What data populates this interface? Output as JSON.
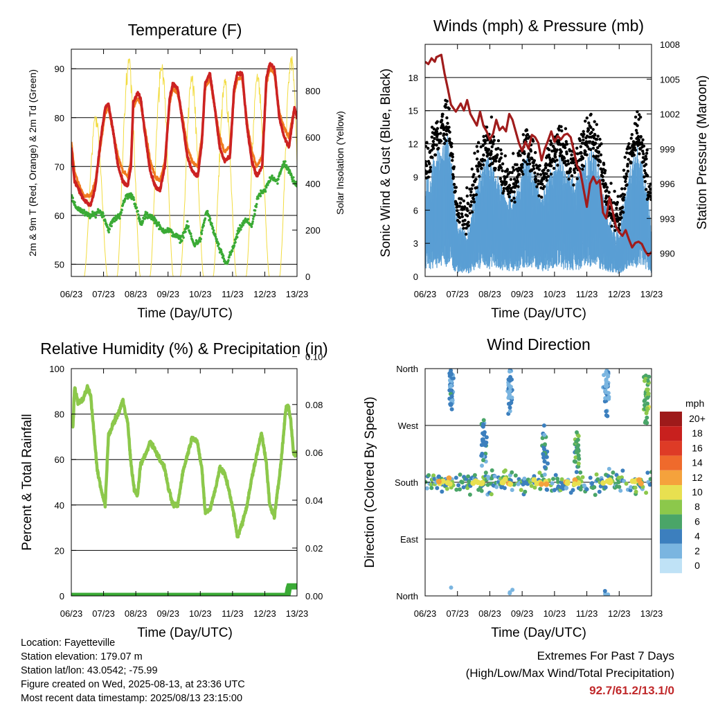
{
  "chart_data": [
    {
      "id": "temperature",
      "type": "line",
      "title": "Temperature (F)",
      "xlabel": "Time (Day/UTC)",
      "ylabel": "2m & 9m T (Red, Orange) & 2m Td (Green)",
      "ylabel_right": "Solar Insolation (Yellow)",
      "x_ticks": [
        "06/23",
        "07/23",
        "08/23",
        "09/23",
        "10/23",
        "11/23",
        "12/23",
        "13/23"
      ],
      "x_range": [
        6,
        13
      ],
      "y_ticks": [
        50,
        60,
        70,
        80,
        90
      ],
      "ylim": [
        47.5,
        94
      ],
      "y2_ticks": [
        0,
        200,
        400,
        600,
        800
      ],
      "y2lim": [
        0,
        980
      ],
      "grid": "horizontal",
      "colors": {
        "temp_2m": "#cc2222",
        "temp_9m": "#f07a20",
        "dewpoint": "#3aaa35",
        "solar": "#f2dc40"
      },
      "series": [
        {
          "name": "2m T",
          "axis": "left",
          "x": [
            6.0,
            6.1,
            6.25,
            6.4,
            6.6,
            6.75,
            6.9,
            7.05,
            7.15,
            7.3,
            7.45,
            7.6,
            7.75,
            7.85,
            7.92,
            8.05,
            8.15,
            8.3,
            8.45,
            8.6,
            8.75,
            8.9,
            9.05,
            9.15,
            9.3,
            9.45,
            9.6,
            9.75,
            9.92,
            10.05,
            10.15,
            10.3,
            10.45,
            10.6,
            10.75,
            10.92,
            11.05,
            11.15,
            11.3,
            11.45,
            11.6,
            11.75,
            11.92,
            12.05,
            12.15,
            12.3,
            12.45,
            12.6,
            12.75,
            12.92,
            13.0
          ],
          "y": [
            74,
            67,
            65,
            63,
            62,
            66,
            75,
            82,
            83,
            77,
            70,
            67,
            66,
            70,
            83,
            85,
            84,
            76,
            69,
            66,
            65,
            70,
            84,
            87,
            86,
            79,
            72,
            69,
            68,
            75,
            87,
            89,
            82,
            74,
            71,
            72,
            86,
            89,
            89,
            78,
            71,
            68,
            70,
            88,
            91,
            90,
            80,
            76,
            74,
            82,
            80
          ]
        },
        {
          "name": "9m T",
          "axis": "left",
          "x": [
            6.0,
            6.1,
            6.25,
            6.4,
            6.6,
            6.75,
            6.9,
            7.05,
            7.15,
            7.3,
            7.45,
            7.6,
            7.75,
            7.85,
            7.92,
            8.05,
            8.15,
            8.3,
            8.45,
            8.6,
            8.75,
            8.9,
            9.05,
            9.15,
            9.3,
            9.45,
            9.6,
            9.75,
            9.92,
            10.05,
            10.15,
            10.3,
            10.45,
            10.6,
            10.75,
            10.92,
            11.05,
            11.15,
            11.3,
            11.45,
            11.6,
            11.75,
            11.92,
            12.05,
            12.15,
            12.3,
            12.45,
            12.6,
            12.75,
            12.92,
            13.0
          ],
          "y": [
            75,
            69,
            66,
            64,
            64,
            67,
            74,
            81,
            82,
            77,
            72,
            69,
            68,
            71,
            82,
            84,
            83,
            77,
            71,
            68,
            67,
            71,
            83,
            86,
            85,
            80,
            74,
            71,
            70,
            76,
            86,
            88,
            82,
            76,
            73,
            74,
            85,
            88,
            88,
            79,
            73,
            70,
            72,
            87,
            90,
            89,
            81,
            78,
            76,
            82,
            80
          ]
        },
        {
          "name": "2m Td",
          "axis": "left",
          "x": [
            6.0,
            6.1,
            6.3,
            6.5,
            6.7,
            6.85,
            7.0,
            7.15,
            7.3,
            7.5,
            7.7,
            7.9,
            8.0,
            8.15,
            8.3,
            8.45,
            8.6,
            8.8,
            9.0,
            9.2,
            9.4,
            9.6,
            9.8,
            10.0,
            10.2,
            10.4,
            10.6,
            10.8,
            11.0,
            11.2,
            11.4,
            11.6,
            11.8,
            12.0,
            12.2,
            12.4,
            12.6,
            12.75,
            12.9,
            13.0
          ],
          "y": [
            64,
            62,
            61,
            60,
            60,
            61,
            60,
            57,
            59,
            60,
            64,
            64,
            62,
            58,
            60,
            60,
            59,
            57,
            57,
            56,
            55,
            58,
            54,
            55,
            61,
            57,
            53,
            50,
            53,
            57,
            59,
            58,
            64,
            65,
            68,
            67,
            71,
            69,
            67,
            66
          ]
        },
        {
          "name": "Solar Insolation",
          "axis": "right",
          "days": [
            6,
            7,
            8,
            9,
            10,
            11,
            12
          ],
          "peak_x": [
            6.76,
            7.78,
            8.8,
            9.74,
            10.76,
            11.78,
            12.82
          ],
          "peak_y": [
            700,
            960,
            940,
            880,
            860,
            880,
            960
          ]
        }
      ]
    },
    {
      "id": "winds",
      "type": "scatter",
      "title": "Winds (mph) & Pressure (mb)",
      "xlabel": "Time (Day/UTC)",
      "ylabel": "Sonic Wind & Gust (Blue, Black)",
      "ylabel_right": "Station Pressure (Maroon)",
      "x_ticks": [
        "06/23",
        "07/23",
        "08/23",
        "09/23",
        "10/23",
        "11/23",
        "12/23",
        "13/23"
      ],
      "x_range": [
        6,
        13
      ],
      "y_ticks": [
        0,
        3,
        6,
        9,
        12,
        15,
        18
      ],
      "ylim": [
        0,
        21
      ],
      "y2_ticks": [
        990,
        993,
        996,
        999,
        1002,
        1005,
        1008
      ],
      "y2lim": [
        988,
        1008
      ],
      "grid": "horizontal",
      "colors": {
        "wind": "#5a9fd4",
        "gust": "#000000",
        "pressure": "#a01c1c"
      },
      "wind_activity": {
        "x": [
          6.0,
          6.3,
          6.7,
          7.0,
          7.3,
          7.6,
          7.9,
          8.2,
          8.5,
          8.8,
          9.1,
          9.3,
          9.6,
          9.9,
          10.2,
          10.5,
          10.8,
          11.1,
          11.4,
          11.7,
          12.0,
          12.3,
          12.6,
          12.9,
          13.0
        ],
        "y": [
          7,
          9,
          11,
          4,
          3,
          7,
          9,
          8,
          6,
          6,
          9,
          8,
          6,
          8,
          9,
          7,
          8,
          10,
          8,
          4,
          3,
          8,
          10,
          6,
          4
        ]
      },
      "series": [
        {
          "name": "Station Pressure",
          "axis": "right",
          "x": [
            6.0,
            6.1,
            6.2,
            6.3,
            6.35,
            6.5,
            6.6,
            6.7,
            6.8,
            6.95,
            7.1,
            7.2,
            7.3,
            7.4,
            7.5,
            7.6,
            7.7,
            7.8,
            7.9,
            8.0,
            8.1,
            8.2,
            8.3,
            8.4,
            8.5,
            8.6,
            8.7,
            8.8,
            8.9,
            9.0,
            9.1,
            9.2,
            9.3,
            9.4,
            9.5,
            9.6,
            9.7,
            9.8,
            9.9,
            10.0,
            10.1,
            10.2,
            10.3,
            10.4,
            10.5,
            10.6,
            10.7,
            10.8,
            10.9,
            11.0,
            11.1,
            11.2,
            11.3,
            11.4,
            11.5,
            11.6,
            11.7,
            11.8,
            11.9,
            12.0,
            12.1,
            12.2,
            12.3,
            12.4,
            12.5,
            12.6,
            12.7,
            12.8,
            12.9,
            13.0
          ],
          "y": [
            1006.5,
            1006.3,
            1006.8,
            1006.5,
            1006.9,
            1007.1,
            1005.5,
            1004.2,
            1002.8,
            1002.2,
            1002.9,
            1002.3,
            1003.2,
            1002.0,
            1001.5,
            1001.0,
            1002.2,
            1001.0,
            1000.5,
            999.8,
            1000.3,
            1001.5,
            1000.6,
            1000.9,
            1000.5,
            1002.0,
            1001.5,
            1000.5,
            999.5,
            998.8,
            999.6,
            999.0,
            1000.2,
            1000.0,
            999.5,
            998.0,
            999.0,
            999.7,
            1000.5,
            999.6,
            1000.1,
            999.8,
            1000.2,
            1000.3,
            1000.0,
            998.8,
            997.5,
            997.0,
            995.5,
            994.0,
            996.0,
            996.6,
            996.0,
            996.3,
            993.5,
            993.0,
            994.8,
            993.6,
            992.3,
            991.8,
            991.5,
            992.0,
            991.2,
            990.5,
            990.9,
            991.0,
            990.8,
            990.2,
            989.8,
            990.1
          ]
        }
      ]
    },
    {
      "id": "humidity",
      "type": "line",
      "title": "Relative Humidity (%) & Precipitation (in)",
      "xlabel": "Time (Day/UTC)",
      "ylabel": "Percent & Total Rainfall",
      "x_ticks": [
        "06/23",
        "07/23",
        "08/23",
        "09/23",
        "10/23",
        "11/23",
        "12/23",
        "13/23"
      ],
      "x_range": [
        6,
        13
      ],
      "y_ticks": [
        0,
        20,
        40,
        60,
        80,
        100
      ],
      "ylim": [
        0,
        100
      ],
      "y2_ticks": [
        "0.00",
        "0.02",
        "0.04",
        "0.06",
        "0.08",
        "0.10"
      ],
      "y2lim": [
        0,
        0.095
      ],
      "grid": "horizontal",
      "colors": {
        "rh": "#8cc84b",
        "precip": "#3aaa35"
      },
      "series": [
        {
          "name": "Relative Humidity",
          "axis": "left",
          "x": [
            6.0,
            6.05,
            6.1,
            6.2,
            6.35,
            6.5,
            6.6,
            6.7,
            6.8,
            6.95,
            7.05,
            7.15,
            7.3,
            7.45,
            7.6,
            7.75,
            7.85,
            7.95,
            8.05,
            8.15,
            8.3,
            8.45,
            8.6,
            8.75,
            8.9,
            9.0,
            9.15,
            9.3,
            9.45,
            9.6,
            9.75,
            9.9,
            10.05,
            10.15,
            10.3,
            10.45,
            10.6,
            10.75,
            10.9,
            11.05,
            11.15,
            11.3,
            11.45,
            11.6,
            11.75,
            11.9,
            12.05,
            12.15,
            12.3,
            12.45,
            12.55,
            12.65,
            12.72,
            12.8,
            12.9,
            13.0
          ],
          "y": [
            80,
            74,
            92,
            85,
            86,
            92,
            88,
            72,
            56,
            45,
            40,
            70,
            76,
            80,
            86,
            76,
            58,
            47,
            44,
            58,
            62,
            68,
            64,
            60,
            56,
            48,
            40,
            40,
            54,
            62,
            70,
            68,
            56,
            37,
            38,
            46,
            56,
            54,
            46,
            35,
            26,
            32,
            40,
            52,
            62,
            72,
            58,
            40,
            35,
            52,
            66,
            82,
            84,
            78,
            62,
            63
          ]
        },
        {
          "name": "Total Rainfall",
          "axis": "right",
          "x": [
            6.0,
            12.7,
            12.75,
            13.0
          ],
          "y": [
            0.0,
            0.0,
            0.004,
            0.004
          ]
        }
      ]
    },
    {
      "id": "wind_direction",
      "type": "scatter",
      "title": "Wind Direction",
      "xlabel": "Time (Day/UTC)",
      "ylabel": "Direction (Colored By Speed)",
      "x_ticks": [
        "06/23",
        "07/23",
        "08/23",
        "09/23",
        "10/23",
        "11/23",
        "12/23",
        "13/23"
      ],
      "x_range": [
        6,
        13
      ],
      "y_ticks": [
        "North",
        "East",
        "South",
        "West",
        "North"
      ],
      "ylim": [
        0,
        360
      ],
      "grid": "horizontal",
      "legend": {
        "title": "mph",
        "placement": "right",
        "labels": [
          "20+",
          "18",
          "16",
          "14",
          "12",
          "10",
          "8",
          "6",
          "4",
          "2",
          "0"
        ],
        "colors": [
          "#9e1a1a",
          "#c8201e",
          "#de3b26",
          "#ef6a2c",
          "#f5a23c",
          "#e8e050",
          "#8cc84b",
          "#4aa568",
          "#3c7fbe",
          "#7ab5e0",
          "#bfe2f6"
        ]
      },
      "clusters": [
        {
          "x_center": 6.8,
          "y_center": 325,
          "count": 40,
          "speed": 3
        },
        {
          "x_center": 7.8,
          "y_center": 250,
          "count": 30,
          "speed": 4
        },
        {
          "x_center": 8.6,
          "y_center": 330,
          "count": 40,
          "speed": 3
        },
        {
          "x_center": 9.7,
          "y_center": 230,
          "count": 30,
          "speed": 5
        },
        {
          "x_center": 10.7,
          "y_center": 230,
          "count": 30,
          "speed": 6
        },
        {
          "x_center": 11.6,
          "y_center": 330,
          "count": 40,
          "speed": 3
        },
        {
          "x_center": 12.85,
          "y_center": 315,
          "count": 40,
          "speed": 7
        }
      ]
    }
  ],
  "info": {
    "location": "Location: Fayetteville",
    "elevation": "Station elevation: 179.07 m",
    "latlon": "Station lat/lon: 43.0542; -75.99",
    "created": "Figure created on Wed, 2025-08-13, at 23:36 UTC",
    "recent": "Most recent data timestamp: 2025/08/13 23:15:00"
  },
  "extremes": {
    "title": "Extremes For Past 7 Days",
    "subtitle": "(High/Low/Max Wind/Total Precipitation)",
    "values": "92.7/61.2/13.1/0"
  }
}
